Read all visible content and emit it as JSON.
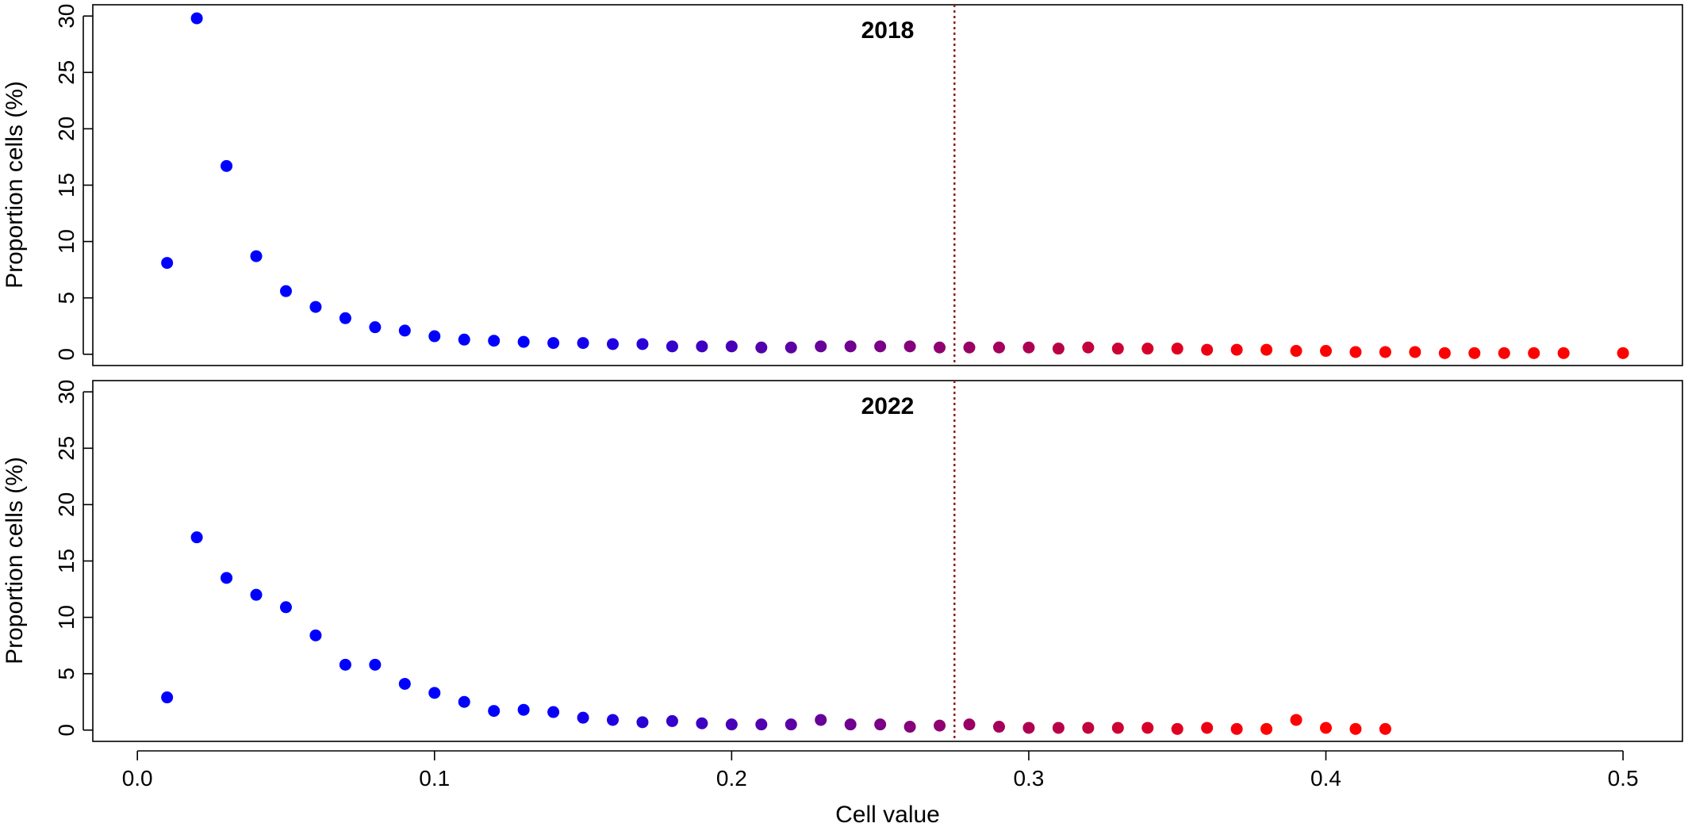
{
  "chart_data": [
    {
      "type": "scatter",
      "title": "2018",
      "ylabel": "Proportion cells (%)",
      "xlabel": "",
      "xlim": [
        -0.015,
        0.52
      ],
      "ylim": [
        -1,
        31
      ],
      "yticks": [
        0,
        5,
        10,
        15,
        20,
        25,
        30
      ],
      "xticks": [],
      "threshold_x": 0.275,
      "x": [
        0.01,
        0.02,
        0.03,
        0.04,
        0.05,
        0.06,
        0.07,
        0.08,
        0.09,
        0.1,
        0.11,
        0.12,
        0.13,
        0.14,
        0.15,
        0.16,
        0.17,
        0.18,
        0.19,
        0.2,
        0.21,
        0.22,
        0.23,
        0.24,
        0.25,
        0.26,
        0.27,
        0.28,
        0.29,
        0.3,
        0.31,
        0.32,
        0.33,
        0.34,
        0.35,
        0.36,
        0.37,
        0.38,
        0.39,
        0.4,
        0.41,
        0.42,
        0.43,
        0.44,
        0.45,
        0.46,
        0.47,
        0.48,
        0.5
      ],
      "y": [
        8.1,
        29.8,
        16.7,
        8.7,
        5.6,
        4.2,
        3.2,
        2.4,
        2.1,
        1.6,
        1.3,
        1.2,
        1.1,
        1.0,
        1.0,
        0.9,
        0.9,
        0.7,
        0.7,
        0.7,
        0.6,
        0.6,
        0.7,
        0.7,
        0.7,
        0.7,
        0.6,
        0.6,
        0.6,
        0.6,
        0.5,
        0.6,
        0.5,
        0.5,
        0.5,
        0.4,
        0.4,
        0.4,
        0.3,
        0.3,
        0.2,
        0.2,
        0.2,
        0.1,
        0.1,
        0.1,
        0.1,
        0.1,
        0.1
      ]
    },
    {
      "type": "scatter",
      "title": "2022",
      "ylabel": "Proportion cells (%)",
      "xlabel": "Cell value",
      "xlim": [
        -0.015,
        0.52
      ],
      "ylim": [
        -1,
        31
      ],
      "yticks": [
        0,
        5,
        10,
        15,
        20,
        25,
        30
      ],
      "xticks": [
        "0.0",
        "0.1",
        "0.2",
        "0.3",
        "0.4",
        "0.5"
      ],
      "threshold_x": 0.275,
      "x": [
        0.01,
        0.02,
        0.03,
        0.04,
        0.05,
        0.06,
        0.07,
        0.08,
        0.09,
        0.1,
        0.11,
        0.12,
        0.13,
        0.14,
        0.15,
        0.16,
        0.17,
        0.18,
        0.19,
        0.2,
        0.21,
        0.22,
        0.23,
        0.24,
        0.25,
        0.26,
        0.27,
        0.28,
        0.29,
        0.3,
        0.31,
        0.32,
        0.33,
        0.34,
        0.35,
        0.36,
        0.37,
        0.38,
        0.39,
        0.4,
        0.41,
        0.42
      ],
      "y": [
        2.9,
        17.1,
        13.5,
        12.0,
        10.9,
        8.4,
        5.8,
        5.8,
        4.1,
        3.3,
        2.5,
        1.7,
        1.8,
        1.6,
        1.1,
        0.9,
        0.7,
        0.8,
        0.6,
        0.5,
        0.5,
        0.5,
        0.9,
        0.5,
        0.5,
        0.3,
        0.4,
        0.5,
        0.3,
        0.2,
        0.2,
        0.2,
        0.2,
        0.2,
        0.1,
        0.2,
        0.1,
        0.1,
        0.9,
        0.2,
        0.1,
        0.1
      ]
    }
  ],
  "colors": {
    "low": "#0000FF",
    "high": "#FF0000",
    "threshold_line": "#8B1A1A"
  }
}
